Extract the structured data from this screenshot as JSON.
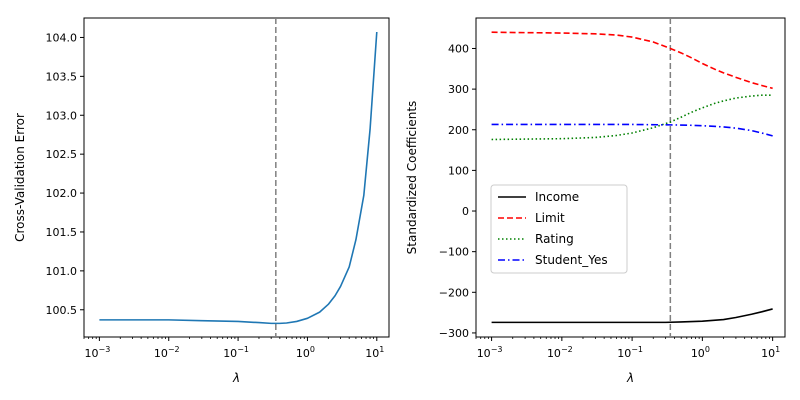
{
  "chart_data": [
    {
      "type": "line",
      "xscale": "log",
      "xlabel": "λ",
      "ylabel": "Cross-Validation Error",
      "xlim": [
        0.0006,
        15
      ],
      "ylim": [
        100.15,
        104.25
      ],
      "xticks": [
        0.001,
        0.01,
        0.1,
        1,
        10
      ],
      "xtick_labels": [
        {
          "base": "10",
          "exp": "−3"
        },
        {
          "base": "10",
          "exp": "−2"
        },
        {
          "base": "10",
          "exp": "−1"
        },
        {
          "base": "10",
          "exp": "0"
        },
        {
          "base": "10",
          "exp": "1"
        }
      ],
      "yticks": [
        100.5,
        101.0,
        101.5,
        102.0,
        102.5,
        103.0,
        103.5,
        104.0
      ],
      "ytick_labels": [
        "100.5",
        "101.0",
        "101.5",
        "102.0",
        "102.5",
        "103.0",
        "103.5",
        "104.0"
      ],
      "vline": {
        "x": 0.35,
        "style": "dashed",
        "color": "#808080"
      },
      "series": [
        {
          "color": "#1f77b4",
          "style": "solid",
          "x": [
            0.001,
            0.003,
            0.01,
            0.03,
            0.1,
            0.2,
            0.3,
            0.4,
            0.5,
            0.7,
            1.0,
            1.5,
            2.0,
            2.5,
            3.0,
            4.0,
            5.0,
            6.5,
            8.0,
            10.0
          ],
          "y": [
            100.37,
            100.37,
            100.37,
            100.36,
            100.35,
            100.335,
            100.325,
            100.325,
            100.33,
            100.35,
            100.39,
            100.47,
            100.57,
            100.68,
            100.8,
            101.05,
            101.4,
            101.97,
            102.82,
            104.07
          ]
        }
      ]
    },
    {
      "type": "line",
      "xscale": "log",
      "xlabel": "λ",
      "ylabel": "Standardized Coefficients",
      "xlim": [
        0.0006,
        15
      ],
      "ylim": [
        -310,
        475
      ],
      "xticks": [
        0.001,
        0.01,
        0.1,
        1,
        10
      ],
      "xtick_labels": [
        {
          "base": "10",
          "exp": "−3"
        },
        {
          "base": "10",
          "exp": "−2"
        },
        {
          "base": "10",
          "exp": "−1"
        },
        {
          "base": "10",
          "exp": "0"
        },
        {
          "base": "10",
          "exp": "1"
        }
      ],
      "yticks": [
        -300,
        -200,
        -100,
        0,
        100,
        200,
        300,
        400
      ],
      "ytick_labels": [
        "−300",
        "−200",
        "−100",
        "0",
        "100",
        "200",
        "300",
        "400"
      ],
      "vline": {
        "x": 0.35,
        "style": "dashed",
        "color": "#808080"
      },
      "legend": {
        "placement": "center-left"
      },
      "series": [
        {
          "name": "Income",
          "color": "#000000",
          "style": "solid",
          "x": [
            0.001,
            0.01,
            0.1,
            0.3,
            0.5,
            1.0,
            2.0,
            3.0,
            5.0,
            7.0,
            10.0
          ],
          "y": [
            -274,
            -274,
            -274,
            -274,
            -273,
            -271,
            -267,
            -262,
            -254,
            -248,
            -241
          ]
        },
        {
          "name": "Limit",
          "color": "#ff0000",
          "style": "dashed",
          "x": [
            0.001,
            0.003,
            0.01,
            0.03,
            0.06,
            0.1,
            0.2,
            0.35,
            0.5,
            0.7,
            1.0,
            1.5,
            2.0,
            3.0,
            5.0,
            7.0,
            10.0
          ],
          "y": [
            440,
            439,
            438,
            436,
            433,
            428,
            416,
            400,
            389,
            377,
            363,
            349,
            340,
            329,
            316,
            309,
            302
          ]
        },
        {
          "name": "Rating",
          "color": "#008000",
          "style": "dotted",
          "x": [
            0.001,
            0.003,
            0.01,
            0.03,
            0.06,
            0.1,
            0.2,
            0.35,
            0.5,
            0.7,
            1.0,
            1.5,
            2.0,
            3.0,
            5.0,
            7.0,
            10.0
          ],
          "y": [
            176,
            177,
            178,
            181,
            186,
            192,
            205,
            219,
            231,
            243,
            254,
            265,
            271,
            278,
            283,
            285,
            285
          ]
        },
        {
          "name": "Student_Yes",
          "color": "#0000ff",
          "style": "dashdot",
          "x": [
            0.001,
            0.01,
            0.1,
            0.35,
            0.7,
            1.0,
            2.0,
            3.0,
            5.0,
            7.0,
            10.0
          ],
          "y": [
            213,
            213,
            213,
            212,
            211,
            210,
            207,
            204,
            198,
            192,
            185
          ]
        }
      ]
    }
  ]
}
